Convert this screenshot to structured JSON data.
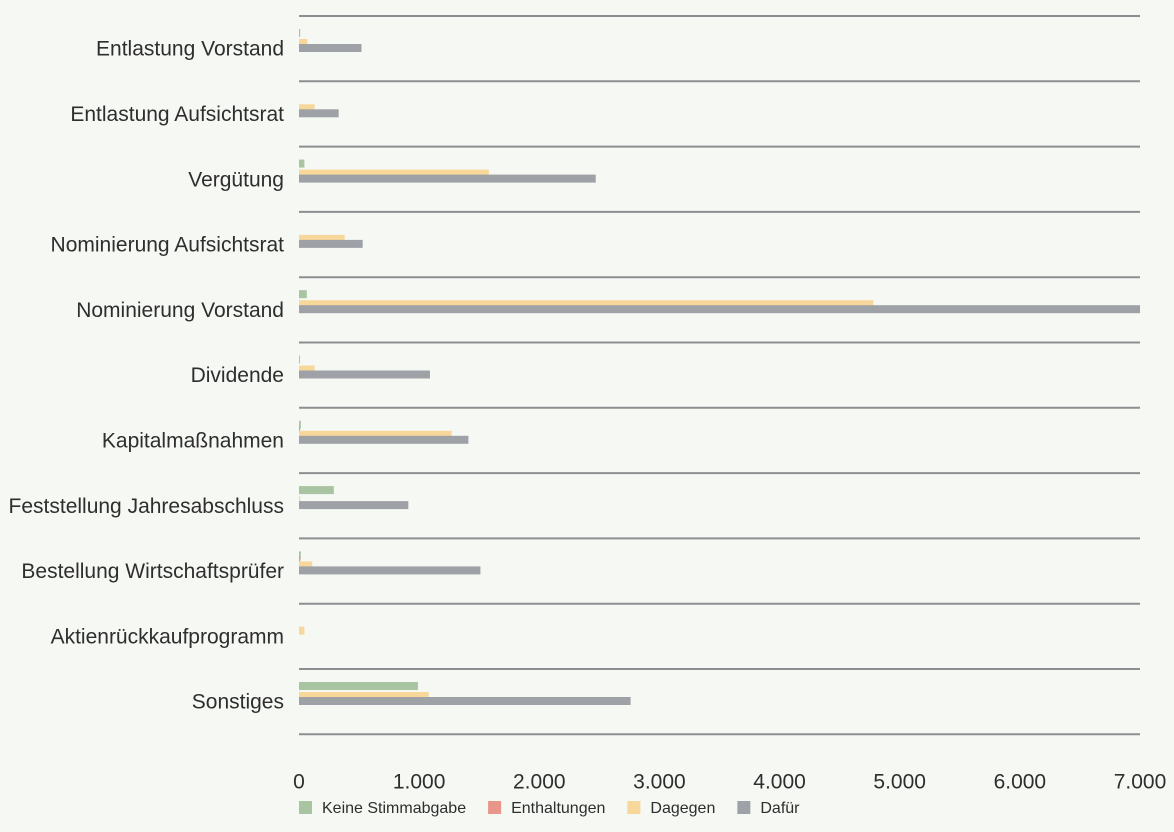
{
  "chart_data": {
    "type": "bar",
    "orientation": "horizontal",
    "title": "",
    "xlabel": "",
    "ylabel": "",
    "xlim": [
      0,
      7000
    ],
    "x_ticks": [
      0,
      1000,
      2000,
      3000,
      4000,
      5000,
      6000,
      7000
    ],
    "x_tick_labels": [
      "0",
      "1.000",
      "2.000",
      "3.000",
      "4.000",
      "5.000",
      "6.000",
      "7.000"
    ],
    "grid": false,
    "legend_position": "bottom",
    "categories": [
      "Entlastung Vorstand",
      "Entlastung Aufsichtsrat",
      "Vergütung",
      "Nominierung Aufsichtsrat",
      "Nominierung Vorstand",
      "Dividende",
      "Kapitalmaßnahmen",
      "Feststellung Jahresabschluss",
      "Bestellung Wirtschaftsprüfer",
      "Aktienrückkaufprogramm",
      "Sonstiges"
    ],
    "series": [
      {
        "name": "Keine Stimmabgabe",
        "color": "#a9c4a0",
        "values": [
          10,
          0,
          45,
          0,
          65,
          8,
          15,
          290,
          15,
          0,
          990
        ]
      },
      {
        "name": "Enthaltungen",
        "color": "#e8968a",
        "values": [
          0,
          0,
          0,
          0,
          0,
          0,
          8,
          0,
          10,
          0,
          0
        ]
      },
      {
        "name": "Dagegen",
        "color": "#f8d79a",
        "values": [
          70,
          130,
          1580,
          380,
          4780,
          130,
          1270,
          10,
          110,
          45,
          1080
        ]
      },
      {
        "name": "Dafür",
        "color": "#9ea2a6",
        "values": [
          520,
          330,
          2470,
          530,
          7000,
          1090,
          1410,
          910,
          1510,
          0,
          2760
        ]
      }
    ]
  }
}
